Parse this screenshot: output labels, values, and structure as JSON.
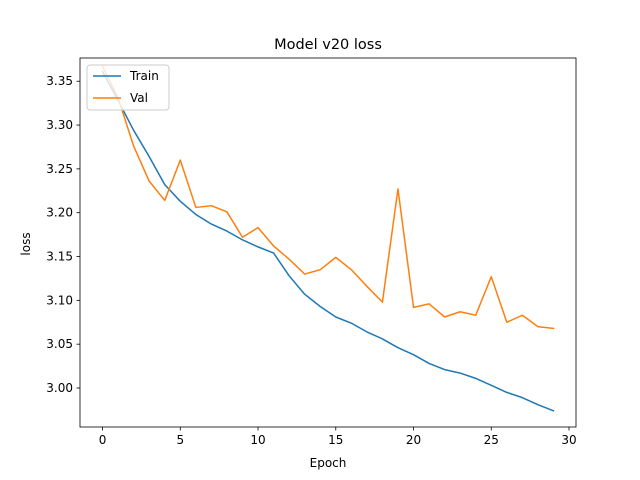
{
  "chart_data": {
    "type": "line",
    "title": "Model v20 loss",
    "xlabel": "Epoch",
    "ylabel": "loss",
    "xlim": [
      -1.45,
      30.45
    ],
    "ylim": [
      2.9555,
      3.3765
    ],
    "xticks": [
      0,
      5,
      10,
      15,
      20,
      25,
      30
    ],
    "yticks": [
      3.0,
      3.05,
      3.1,
      3.15,
      3.2,
      3.25,
      3.3,
      3.35
    ],
    "ytick_labels": [
      "3.00",
      "3.05",
      "3.10",
      "3.15",
      "3.20",
      "3.25",
      "3.30",
      "3.35"
    ],
    "grid": false,
    "legend_position": "top-left",
    "x": [
      0,
      1,
      2,
      3,
      4,
      5,
      6,
      7,
      8,
      9,
      10,
      11,
      12,
      13,
      14,
      15,
      16,
      17,
      18,
      19,
      20,
      21,
      22,
      23,
      24,
      25,
      26,
      27,
      28,
      29
    ],
    "series": [
      {
        "name": "Train",
        "color": "#1f77b4",
        "values": [
          3.361,
          3.328,
          3.294,
          3.264,
          3.232,
          3.213,
          3.198,
          3.187,
          3.179,
          3.169,
          3.161,
          3.154,
          3.128,
          3.107,
          3.093,
          3.081,
          3.074,
          3.064,
          3.056,
          3.046,
          3.038,
          3.028,
          3.021,
          3.017,
          3.011,
          3.003,
          2.995,
          2.989,
          2.981,
          2.974
        ]
      },
      {
        "name": "Val",
        "color": "#ff7f0e",
        "values": [
          3.367,
          3.331,
          3.276,
          3.236,
          3.214,
          3.26,
          3.206,
          3.208,
          3.201,
          3.172,
          3.183,
          3.162,
          3.147,
          3.13,
          3.135,
          3.149,
          3.135,
          3.116,
          3.098,
          3.227,
          3.092,
          3.096,
          3.081,
          3.087,
          3.083,
          3.127,
          3.075,
          3.083,
          3.07,
          3.068
        ]
      }
    ]
  }
}
